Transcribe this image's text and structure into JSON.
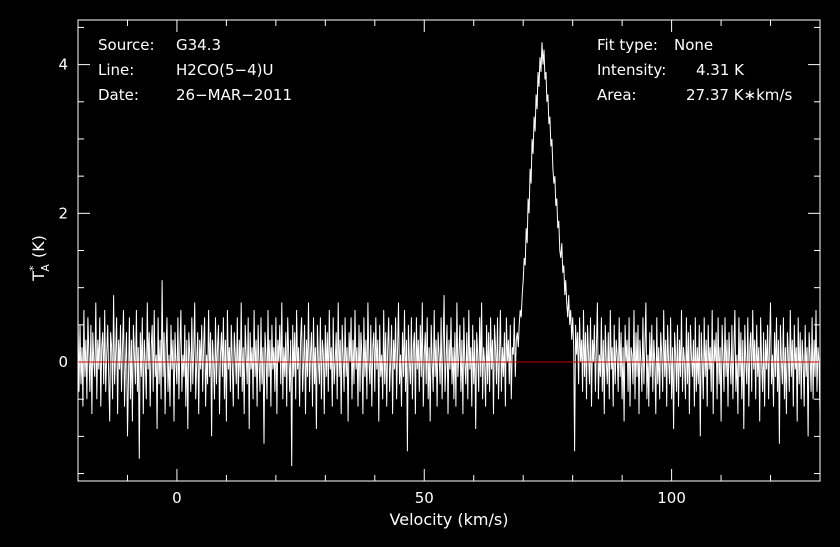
{
  "chart_data": {
    "type": "line",
    "header_left": [
      {
        "key": "Source:",
        "value": "G34.3"
      },
      {
        "key": "Line:",
        "value": "H2CO(5−4)U"
      },
      {
        "key": "Date:",
        "value": "26−MAR−2011"
      }
    ],
    "header_right": [
      {
        "key": "Fit type:",
        "value": "None"
      },
      {
        "key": "Intensity:",
        "value": "4.31 K"
      },
      {
        "key": "Area:",
        "value": "27.37 K∗km/s"
      }
    ],
    "xlabel": "Velocity (km/s)",
    "ylabel_main": "T",
    "ylabel_sup": "*",
    "ylabel_sub": "A",
    "ylabel_unit": "(K)",
    "xlim": [
      -20,
      130
    ],
    "ylim": [
      -1.6,
      4.6
    ],
    "x_ticks": [
      0,
      50,
      100
    ],
    "y_ticks": [
      0,
      2,
      4
    ],
    "x_step": 0.2,
    "baseline": 0,
    "colors": {
      "background": "#000000",
      "spectrum": "#ffffff",
      "baseline": "#c80000",
      "frame": "#ffffff"
    },
    "series": [
      {
        "values": [
          0.6,
          -0.4,
          0.5,
          -0.3,
          0.2,
          -0.6,
          0.7,
          -0.2,
          0.3,
          -0.5,
          0.6,
          0.1,
          -0.4,
          0.5,
          -0.7,
          0.4,
          0.0,
          -0.2,
          0.8,
          -0.5,
          0.3,
          -0.1,
          0.6,
          -0.6,
          0.2,
          0.4,
          -0.3,
          0.7,
          -0.4,
          0.1,
          0.5,
          -0.2,
          -0.8,
          0.4,
          0.2,
          -0.5,
          0.9,
          -0.3,
          0.1,
          0.6,
          -0.7,
          0.3,
          -0.1,
          0.5,
          -0.4,
          0.2,
          0.7,
          -0.6,
          0.0,
          0.4,
          -1.0,
          -0.2,
          0.6,
          -0.5,
          0.3,
          -0.8,
          0.5,
          0.1,
          -0.3,
          0.7,
          -0.4,
          0.2,
          -1.3,
          0.4,
          -0.2,
          0.6,
          -0.7,
          0.3,
          0.0,
          -0.5,
          0.8,
          -0.1,
          0.4,
          -0.6,
          0.2,
          0.5,
          -0.4,
          0.7,
          -0.2,
          0.1,
          -0.9,
          0.6,
          -0.3,
          0.3,
          -0.5,
          1.1,
          -0.2,
          0.4,
          -0.7,
          0.2,
          0.6,
          -0.4,
          0.1,
          -0.6,
          0.5,
          -0.1,
          0.3,
          -0.8,
          0.4,
          0.0,
          -0.3,
          0.6,
          -0.5,
          0.2,
          0.7,
          -0.4,
          0.1,
          -0.2,
          0.5,
          -0.6,
          0.3,
          -0.9,
          0.4,
          0.1,
          -0.4,
          0.6,
          -0.3,
          0.2,
          0.8,
          -0.5,
          0.0,
          0.4,
          -0.7,
          0.3,
          -0.1,
          0.5,
          -0.4,
          0.2,
          0.6,
          -0.6,
          0.1,
          -0.3,
          0.7,
          -0.2,
          0.4,
          -1.0,
          0.3,
          0.0,
          -0.5,
          0.6,
          -0.3,
          0.2,
          0.5,
          -0.7,
          0.1,
          0.4,
          -0.2,
          0.6,
          -0.5,
          0.3,
          -0.8,
          0.7,
          -0.1,
          0.2,
          -0.4,
          0.5,
          0.0,
          -0.6,
          0.4,
          0.1,
          -0.3,
          0.6,
          -0.5,
          0.3,
          -0.2,
          0.8,
          -0.4,
          0.2,
          -0.7,
          0.5,
          0.1,
          -0.3,
          0.6,
          -0.9,
          0.4,
          -0.1,
          0.2,
          -0.5,
          0.7,
          -0.2,
          0.3,
          -0.6,
          0.5,
          0.0,
          -0.4,
          0.6,
          -0.3,
          0.2,
          -1.1,
          0.4,
          0.1,
          -0.5,
          0.7,
          -0.2,
          0.3,
          -0.6,
          0.5,
          -0.1,
          0.2,
          -0.4,
          0.6,
          -0.7,
          0.3,
          0.0,
          0.5,
          -0.3,
          0.8,
          -0.5,
          0.2,
          -0.2,
          0.4,
          -0.6,
          0.6,
          0.1,
          -0.4,
          0.3,
          -1.4,
          0.5,
          -0.2,
          0.4,
          -0.5,
          0.7,
          -0.1,
          0.2,
          -0.6,
          0.3,
          0.6,
          -0.4,
          0.0,
          0.5,
          -0.7,
          0.3,
          -0.2,
          0.8,
          -0.4,
          0.1,
          0.4,
          -0.6,
          0.6,
          -0.3,
          0.2,
          -0.9,
          0.5,
          0.0,
          -0.3,
          0.6,
          -0.5,
          0.3,
          0.1,
          -0.7,
          0.5,
          -0.2,
          0.4,
          -0.4,
          0.7,
          -0.1,
          0.2,
          -0.6,
          0.6,
          -0.3,
          0.0,
          0.4,
          -0.5,
          0.8,
          -0.2,
          0.3,
          -0.7,
          0.5,
          0.1,
          -0.4,
          0.6,
          -0.2,
          0.2,
          -0.8,
          0.4,
          0.0,
          0.6,
          -0.5,
          0.3,
          -0.3,
          0.7,
          -0.1,
          0.2,
          -0.6,
          0.5,
          -0.4,
          0.4,
          0.1,
          -0.7,
          0.6,
          -0.2,
          0.3,
          -0.5,
          0.8,
          0.0,
          -0.3,
          0.5,
          -0.6,
          0.2,
          0.4,
          -0.4,
          0.6,
          -0.1,
          0.3,
          -0.8,
          0.5,
          -0.2,
          0.1,
          -0.5,
          0.7,
          -0.3,
          0.4,
          -0.6,
          0.2,
          0.6,
          -0.4,
          0.0,
          0.5,
          -0.7,
          0.3,
          -0.1,
          0.6,
          -0.5,
          0.2,
          0.8,
          -0.3,
          0.1,
          -0.6,
          0.4,
          -0.2,
          0.7,
          -0.4,
          0.3,
          -1.2,
          0.5,
          0.0,
          -0.3,
          0.6,
          -0.5,
          0.2,
          0.4,
          -0.7,
          0.6,
          -0.1,
          0.3,
          -0.4,
          0.5,
          -0.2,
          0.8,
          -0.6,
          0.1,
          0.4,
          -0.3,
          0.6,
          -0.5,
          0.2,
          -0.8,
          0.5,
          0.0,
          -0.4,
          0.7,
          -0.2,
          0.3,
          -0.6,
          0.4,
          0.1,
          -0.3,
          0.6,
          -0.5,
          0.2,
          0.9,
          -0.4,
          0.0,
          0.5,
          -0.7,
          0.3,
          -0.1,
          0.6,
          -0.3,
          0.2,
          -0.5,
          0.4,
          -0.6,
          0.8,
          -0.2,
          0.1,
          0.5,
          -0.4,
          0.3,
          -0.7,
          0.6,
          0.0,
          -0.3,
          0.4,
          -0.5,
          0.7,
          -0.1,
          0.2,
          -0.6,
          0.5,
          -0.3,
          0.3,
          -0.9,
          0.4,
          0.1,
          -0.4,
          0.6,
          -0.2,
          0.8,
          -0.5,
          0.2,
          0.0,
          -0.6,
          0.5,
          -0.3,
          0.4,
          -0.4,
          0.6,
          -0.1,
          0.3,
          -0.7,
          0.5,
          0.2,
          -0.3,
          0.6,
          -0.5,
          0.1,
          0.7,
          -0.4,
          0.2,
          -0.2,
          0.4,
          -0.6,
          0.6,
          0.0,
          0.3,
          -0.3,
          0.5,
          -0.5,
          0.2,
          0.1,
          0.6,
          -0.2,
          0.3,
          0.4,
          0.2,
          0.5,
          0.7,
          0.6,
          0.9,
          1.1,
          1.4,
          1.3,
          1.8,
          1.6,
          2.2,
          2.0,
          2.6,
          2.4,
          3.0,
          2.8,
          3.3,
          3.1,
          3.6,
          3.4,
          3.9,
          3.7,
          4.1,
          3.9,
          4.3,
          4.0,
          4.2,
          3.8,
          3.9,
          3.5,
          3.6,
          3.2,
          3.3,
          2.9,
          3.0,
          2.6,
          2.4,
          2.5,
          2.1,
          2.2,
          1.8,
          1.9,
          1.5,
          1.4,
          1.6,
          1.2,
          1.3,
          0.9,
          1.1,
          0.8,
          0.6,
          0.9,
          0.5,
          0.7,
          0.3,
          0.6,
          0.2,
          -1.2,
          0.5,
          0.1,
          0.4,
          -0.3,
          0.6,
          0.0,
          0.3,
          -0.4,
          0.7,
          -0.2,
          0.4,
          -0.5,
          0.5,
          0.1,
          -0.3,
          0.6,
          -0.6,
          0.3,
          0.0,
          0.5,
          -0.4,
          0.2,
          0.8,
          -0.5,
          0.1,
          -0.2,
          0.6,
          -0.4,
          0.3,
          -0.7,
          0.5,
          0.0,
          -0.3,
          0.4,
          -0.5,
          0.7,
          -0.1,
          0.2,
          -0.6,
          0.5,
          -0.3,
          0.3,
          0.1,
          -0.4,
          0.6,
          -0.2,
          0.4,
          -0.5,
          0.2,
          -0.8,
          0.5,
          0.0,
          0.3,
          -0.4,
          0.6,
          -0.6,
          0.2,
          0.1,
          -0.3,
          0.7,
          -0.5,
          0.4,
          -0.2,
          0.5,
          -0.7,
          0.3,
          0.0,
          -0.4,
          0.6,
          -0.3,
          0.2,
          0.8,
          -0.5,
          0.1,
          -0.6,
          0.4,
          -0.2,
          0.5,
          -0.4,
          0.3,
          0.0,
          -0.7,
          0.6,
          -0.3,
          0.2,
          -0.5,
          0.4,
          0.1,
          -0.4,
          0.7,
          -0.2,
          0.3,
          -0.6,
          0.5,
          0.0,
          -0.3,
          0.6,
          -0.5,
          0.2,
          -0.9,
          0.4,
          0.1,
          -0.4,
          0.5,
          -0.6,
          0.3,
          -0.2,
          0.7,
          -0.4,
          0.2,
          0.0,
          -0.5,
          0.6,
          -0.3,
          0.4,
          -0.7,
          0.5,
          0.1,
          -0.2,
          0.3,
          -0.6,
          0.6,
          -0.4,
          0.2,
          -0.3,
          0.5,
          -1.0,
          0.4,
          0.0,
          -0.5,
          0.6,
          -0.2,
          0.3,
          -0.6,
          0.5,
          -0.1,
          0.2,
          -0.4,
          0.7,
          -0.7,
          0.3,
          0.0,
          0.4,
          -0.5,
          0.6,
          -0.3,
          0.2,
          -0.8,
          0.5,
          0.1,
          -0.4,
          0.6,
          -0.2,
          0.3,
          -0.6,
          0.4,
          0.0,
          -0.3,
          0.5,
          -0.5,
          0.2,
          0.7,
          -0.4,
          0.1,
          -0.7,
          0.6,
          -0.2,
          0.4,
          -0.5,
          0.3,
          -0.9,
          0.5,
          0.0,
          -0.3,
          0.6,
          -0.6,
          0.2,
          0.4,
          -0.4,
          0.7,
          -0.1,
          0.3,
          -0.5,
          0.5,
          -0.2,
          0.2,
          -0.8,
          0.6,
          0.0,
          -0.4,
          0.4,
          -0.6,
          0.3,
          -0.1,
          0.5,
          -0.5,
          0.2,
          0.8,
          -0.3,
          0.1,
          -0.6,
          0.4,
          -0.2,
          0.6,
          -0.4,
          0.3,
          -1.1,
          0.5,
          0.0,
          -0.3,
          0.6,
          -0.5,
          0.2,
          -0.7,
          0.4,
          0.1,
          -0.4,
          0.7,
          -0.2,
          0.3,
          -0.6,
          0.5,
          -0.1,
          0.2,
          -0.8,
          0.6,
          -0.3,
          0.4,
          -0.5,
          0.3,
          0.0,
          -0.6,
          0.5,
          -0.2,
          0.2,
          -1.0,
          0.4,
          0.1,
          -0.4,
          0.6,
          -0.5,
          0.3,
          -0.2,
          0.7,
          -0.4,
          0.2,
          0.0,
          -0.7,
          0.5,
          -0.3,
          0.4,
          -0.6,
          0.6,
          0.1,
          -0.2,
          0.3,
          -0.5,
          0.5,
          -0.4,
          0.2,
          -0.9,
          0.4,
          0.0,
          -0.3,
          0.6,
          -0.6,
          0.3,
          0.1,
          -0.5,
          0.5,
          -0.2,
          0.4,
          -0.4,
          0.6,
          -0.7,
          0.2,
          0.0,
          0.5,
          -0.3,
          0.3,
          -0.6,
          0.4,
          -0.2,
          0.7,
          -0.5,
          0.1,
          -0.8,
          0.5,
          0.2,
          -0.4,
          0.6,
          -0.3,
          0.3,
          -0.6,
          0.4,
          0.0,
          -0.2,
          0.5,
          -0.5,
          0.2,
          0.6,
          -0.4,
          0.1,
          -0.7,
          0.6,
          -0.2,
          0.3,
          -0.5,
          0.4,
          0.0,
          -0.3,
          0.5,
          -0.6,
          0.2,
          0.7,
          -0.4,
          0.3,
          -0.9,
          0.5,
          -0.1,
          0.2,
          -0.5,
          0.6,
          -0.3,
          0.4,
          -0.6,
          0.3,
          0.0,
          -0.4,
          0.6,
          -0.2,
          0.2,
          -0.7,
          0.5,
          0.1,
          -0.3,
          0.4,
          -0.5,
          0.6,
          -0.1,
          0.3,
          -0.6,
          0.5,
          -0.2,
          0.2,
          -0.8,
          0.4,
          0.0,
          -0.3,
          0.6,
          -0.5,
          0.3,
          0.1,
          -0.4,
          0.5,
          -0.2,
          0.4,
          -0.6,
          0.7,
          -0.1,
          0.2,
          -0.5,
          0.5,
          -0.3,
          0.3,
          0.0,
          -0.4,
          0.6,
          -0.5,
          0.2,
          0.8,
          -0.2,
          0.4,
          -0.6,
          0.3,
          0.1,
          -0.3,
          0.5,
          -0.4,
          0.6,
          -0.2,
          0.3,
          -0.7,
          0.5,
          0.0,
          0.2,
          -0.5,
          0.6,
          -0.3,
          0.4,
          -0.6,
          0.2,
          0.8,
          -0.4,
          0.1,
          -0.9,
          0.5,
          -0.2,
          0.3,
          0.6,
          -0.5,
          0.2,
          -0.3,
          0.7,
          -0.4,
          0.4,
          -0.6,
          0.3,
          0.0,
          0.5,
          -0.2,
          0.6,
          -0.5,
          0.8,
          -0.3,
          0.2,
          -0.7,
          0.6,
          0.1,
          -0.4,
          0.9,
          -0.2,
          0.3,
          -0.5,
          0.7,
          0.0
        ]
      }
    ]
  }
}
